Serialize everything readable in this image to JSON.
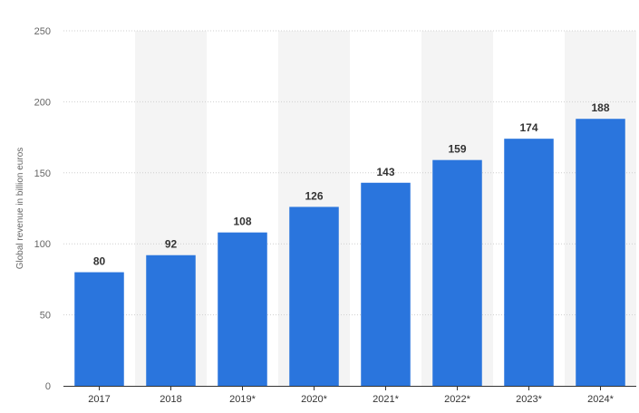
{
  "chart_data": {
    "type": "bar",
    "categories": [
      "2017",
      "2018",
      "2019*",
      "2020*",
      "2021*",
      "2022*",
      "2023*",
      "2024*"
    ],
    "values": [
      80,
      92,
      108,
      126,
      143,
      159,
      174,
      188
    ],
    "data_labels": [
      "80",
      "92",
      "108",
      "126",
      "143",
      "159",
      "174",
      "188"
    ],
    "ylabel": "Global revenue in billion euros",
    "ylim": [
      0,
      250
    ],
    "yticks": [
      0,
      50,
      100,
      150,
      200,
      250
    ],
    "ytick_labels": [
      "0",
      "50",
      "100",
      "150",
      "200",
      "250"
    ],
    "grid": true,
    "alternating_bands": true,
    "bar_color": "#2a75dd"
  }
}
